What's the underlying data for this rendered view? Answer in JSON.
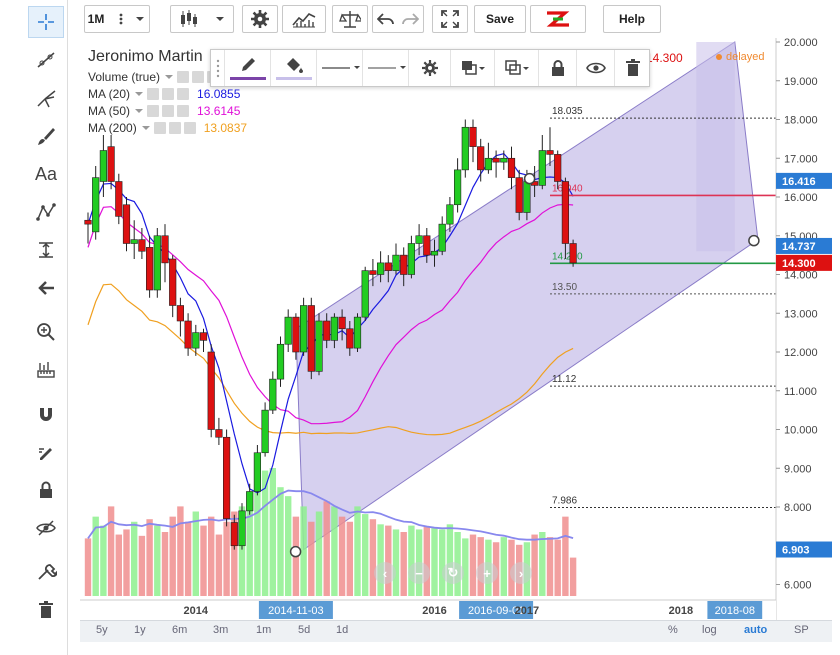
{
  "toolbar": {
    "interval_label": "1M",
    "save_label": "Save",
    "help_label": "Help"
  },
  "legend": {
    "title": "Jeronimo Martin",
    "volume_label": "Volume (true)",
    "ma": [
      {
        "label": "MA (20)",
        "value": "16.0855",
        "color": "#1a1ae0"
      },
      {
        "label": "MA (50)",
        "value": "13.6145",
        "color": "#e010d8"
      },
      {
        "label": "MA (200)",
        "value": "13.0837",
        "color": "#f0a020"
      }
    ],
    "delayed_label": "delayed",
    "last_price_label": "14.300"
  },
  "colors": {
    "up": "#22cc22",
    "down": "#dd1111",
    "channel_fill": "#c8c0ea",
    "accent": "#2a7bd4"
  },
  "bottom_bar": {
    "ranges": [
      "5y",
      "1y",
      "6m",
      "3m",
      "1m",
      "5d",
      "1d"
    ],
    "right": [
      "%",
      "log",
      "auto",
      "SP"
    ]
  },
  "chart_data": {
    "type": "candlestick",
    "y_axis": {
      "min": 5.6,
      "max": 20.0,
      "ticks": [
        "6.000",
        "7.000",
        "8.000",
        "9.000",
        "10.000",
        "11.000",
        "12.000",
        "13.000",
        "14.000",
        "15.000",
        "16.000",
        "17.000",
        "18.000",
        "19.000",
        "20.000"
      ]
    },
    "x_axis": {
      "labels": [
        {
          "text": "2014",
          "i": 14,
          "highlight": false
        },
        {
          "text": "2014-11-03",
          "i": 27,
          "highlight": true
        },
        {
          "text": "2016",
          "i": 45,
          "highlight": false
        },
        {
          "text": "2016-09-01",
          "i": 53,
          "highlight": true
        },
        {
          "text": "2017",
          "i": 57,
          "highlight": false
        },
        {
          "text": "2018",
          "i": 77,
          "highlight": false
        },
        {
          "text": "2018-08",
          "i": 84,
          "highlight": true
        }
      ]
    },
    "price_tags": [
      {
        "text": "16.416",
        "value": 16.416,
        "color": "#2a7bd4"
      },
      {
        "text": "14.737",
        "value": 14.737,
        "color": "#2a7bd4"
      },
      {
        "text": "14.300",
        "value": 14.3,
        "color": "#dd1111"
      },
      {
        "text": "6.903",
        "value": 6.903,
        "color": "#2a7bd4"
      }
    ],
    "fib_levels": [
      {
        "value": 18.035,
        "label": "18.035",
        "color": "#333"
      },
      {
        "value": 16.04,
        "label": "16.040",
        "color": "#dd3355"
      },
      {
        "value": 14.29,
        "label": "14.290",
        "color": "#229944"
      },
      {
        "value": 13.5,
        "label": "13.50",
        "color": "#555"
      },
      {
        "value": 11.12,
        "label": "11.12",
        "color": "#333"
      },
      {
        "value": 7.986,
        "label": "7.986",
        "color": "#333"
      }
    ],
    "candles": [
      [
        15.4,
        15.3,
        14.8,
        15.6
      ],
      [
        15.1,
        16.5,
        14.9,
        16.8
      ],
      [
        16.4,
        17.2,
        16.0,
        17.6
      ],
      [
        17.3,
        16.4,
        16.2,
        17.6
      ],
      [
        16.4,
        15.5,
        15.3,
        16.6
      ],
      [
        15.8,
        14.8,
        14.6,
        16.0
      ],
      [
        14.8,
        14.9,
        14.4,
        15.4
      ],
      [
        14.9,
        14.6,
        14.4,
        15.2
      ],
      [
        14.7,
        13.6,
        13.4,
        15.0
      ],
      [
        13.6,
        15.0,
        13.4,
        15.2
      ],
      [
        15.0,
        14.3,
        13.8,
        15.3
      ],
      [
        14.4,
        13.2,
        12.9,
        14.5
      ],
      [
        13.2,
        12.8,
        12.4,
        13.4
      ],
      [
        12.8,
        12.1,
        11.9,
        13.0
      ],
      [
        12.1,
        12.5,
        11.9,
        12.7
      ],
      [
        12.5,
        12.3,
        12.0,
        12.6
      ],
      [
        12.0,
        10.0,
        9.8,
        12.2
      ],
      [
        10.0,
        9.8,
        9.6,
        10.3
      ],
      [
        9.8,
        7.7,
        7.5,
        10.0
      ],
      [
        7.6,
        7.0,
        6.9,
        7.8
      ],
      [
        7.0,
        7.9,
        6.9,
        8.1
      ],
      [
        7.9,
        8.4,
        7.8,
        8.6
      ],
      [
        8.4,
        9.4,
        8.3,
        9.6
      ],
      [
        9.4,
        10.5,
        9.3,
        10.7
      ],
      [
        10.5,
        11.3,
        10.4,
        11.5
      ],
      [
        11.3,
        12.2,
        11.1,
        12.4
      ],
      [
        12.2,
        12.9,
        12.0,
        13.1
      ],
      [
        12.9,
        12.0,
        11.8,
        13.0
      ],
      [
        12.0,
        13.2,
        11.9,
        13.4
      ],
      [
        13.2,
        11.5,
        11.3,
        13.4
      ],
      [
        11.5,
        12.8,
        11.4,
        13.0
      ],
      [
        12.8,
        12.3,
        12.1,
        13.0
      ],
      [
        12.3,
        12.9,
        12.1,
        13.0
      ],
      [
        12.9,
        12.6,
        12.3,
        13.1
      ],
      [
        12.6,
        12.1,
        11.9,
        12.8
      ],
      [
        12.1,
        12.9,
        12.0,
        13.0
      ],
      [
        12.9,
        14.1,
        12.8,
        14.2
      ],
      [
        14.1,
        14.0,
        13.7,
        14.4
      ],
      [
        14.0,
        14.3,
        13.8,
        14.6
      ],
      [
        14.3,
        14.1,
        13.8,
        14.5
      ],
      [
        14.1,
        14.5,
        14.0,
        14.8
      ],
      [
        14.5,
        14.0,
        13.7,
        14.7
      ],
      [
        14.0,
        14.8,
        13.9,
        15.0
      ],
      [
        14.8,
        15.0,
        14.5,
        15.3
      ],
      [
        15.0,
        14.5,
        14.3,
        15.2
      ],
      [
        14.5,
        14.6,
        14.2,
        14.9
      ],
      [
        14.6,
        15.3,
        14.5,
        15.5
      ],
      [
        15.3,
        15.8,
        15.1,
        16.0
      ],
      [
        15.8,
        16.7,
        15.6,
        17.0
      ],
      [
        16.7,
        17.8,
        16.5,
        18.0
      ],
      [
        17.8,
        17.3,
        16.9,
        18.0
      ],
      [
        17.3,
        16.7,
        16.4,
        17.5
      ],
      [
        16.7,
        17.0,
        16.6,
        17.4
      ],
      [
        17.0,
        16.9,
        16.5,
        17.2
      ],
      [
        16.9,
        17.0,
        16.7,
        17.2
      ],
      [
        17.0,
        16.5,
        16.2,
        17.3
      ],
      [
        16.5,
        15.6,
        15.4,
        16.7
      ],
      [
        15.6,
        16.4,
        15.4,
        16.7
      ],
      [
        16.4,
        16.3,
        16.0,
        16.8
      ],
      [
        16.3,
        17.2,
        16.2,
        17.6
      ],
      [
        17.2,
        17.1,
        16.8,
        17.8
      ],
      [
        17.1,
        16.4,
        16.2,
        17.2
      ],
      [
        16.4,
        14.8,
        14.4,
        16.5
      ],
      [
        14.8,
        14.3,
        14.2,
        14.9
      ]
    ],
    "volume": [
      0.45,
      0.62,
      0.55,
      0.7,
      0.48,
      0.52,
      0.58,
      0.47,
      0.6,
      0.55,
      0.5,
      0.62,
      0.7,
      0.58,
      0.66,
      0.55,
      0.62,
      0.48,
      0.58,
      0.66,
      0.7,
      0.72,
      0.9,
      0.98,
      1.0,
      0.85,
      0.78,
      0.62,
      0.7,
      0.58,
      0.66,
      0.74,
      0.7,
      0.62,
      0.58,
      0.7,
      0.64,
      0.6,
      0.56,
      0.55,
      0.52,
      0.5,
      0.55,
      0.52,
      0.54,
      0.53,
      0.52,
      0.56,
      0.5,
      0.45,
      0.48,
      0.46,
      0.44,
      0.42,
      0.46,
      0.44,
      0.4,
      0.42,
      0.48,
      0.5,
      0.46,
      0.44,
      0.62,
      0.3
    ]
  }
}
